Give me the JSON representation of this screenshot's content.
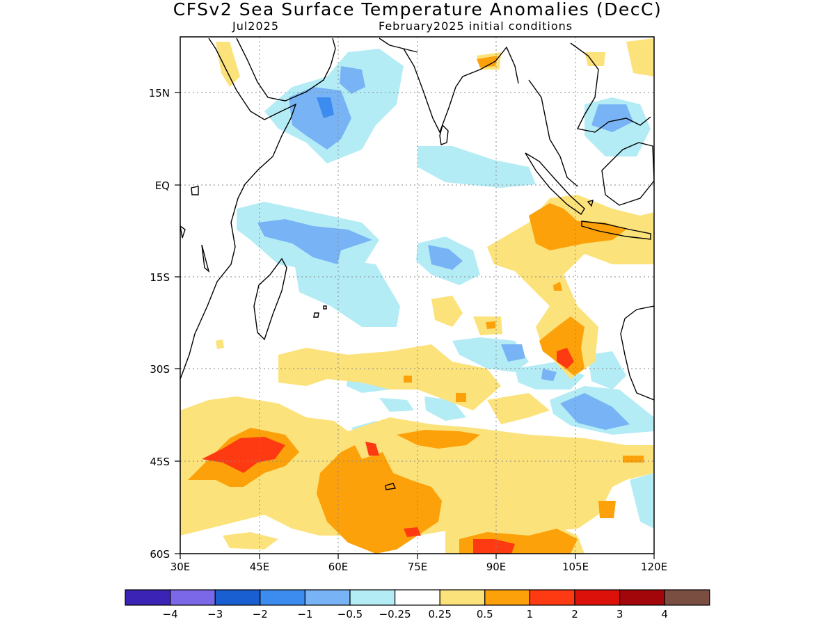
{
  "title": "CFSv2 Sea Surface Temperature Anomalies (DecC)",
  "subtitle_left": "Jul2025",
  "subtitle_right": "February2025 initial conditions",
  "lat_labels": [
    "15N",
    "EQ",
    "15S",
    "30S",
    "45S",
    "60S"
  ],
  "lon_labels": [
    "30E",
    "45E",
    "60E",
    "75E",
    "90E",
    "105E",
    "120E"
  ],
  "colorbar": {
    "colors": [
      "#3a23b5",
      "#7b68e8",
      "#1a5fd1",
      "#3c8cf0",
      "#78b4f5",
      "#b4ecf6",
      "#ffffff",
      "#fce27a",
      "#fca10a",
      "#fd3a12",
      "#dc1109",
      "#a3060a",
      "#7a4f42"
    ],
    "labels": [
      "−4",
      "−3",
      "−2",
      "−1",
      "−0.5",
      "−0.25",
      "0.25",
      "0.5",
      "1",
      "2",
      "3",
      "4"
    ]
  }
}
